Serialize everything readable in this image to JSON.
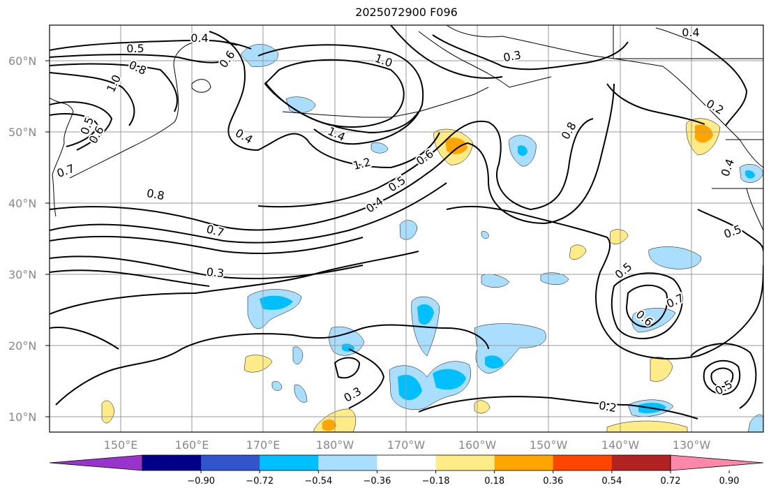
{
  "title": "2025072900 F096",
  "lat_labels": [
    "60°N",
    "50°N",
    "40°N",
    "30°N",
    "20°N",
    "10°N"
  ],
  "lon_labels": [
    "150°E",
    "160°E",
    "170°E",
    "180°W",
    "170°W",
    "160°W",
    "150°W",
    "140°W",
    "130°W"
  ],
  "colorbar": {
    "ticks": [
      "−0.90",
      "−0.72",
      "−0.54",
      "−0.36",
      "−0.18",
      "0.18",
      "0.36",
      "0.54",
      "0.72",
      "0.90"
    ],
    "colors": [
      "#9933cc",
      "#000088",
      "#3355cc",
      "#00bfff",
      "#aadeff",
      "#ffffff",
      "#ffeb88",
      "#ffa500",
      "#ff4500",
      "#b22222",
      "#ff88aa"
    ]
  },
  "contour_labels": [
    "0.4",
    "0.5",
    "0.8",
    "1.0",
    "0.5",
    "0.6",
    "0.7",
    "0.6",
    "0.4",
    "1.0",
    "1.4",
    "1.2",
    "0.6",
    "0.5",
    "0.4",
    "0.8",
    "0.7",
    "0.3",
    "0.3",
    "0.8",
    "0.2",
    "0.4",
    "0.4",
    "0.5",
    "0.5",
    "0.6",
    "0.7",
    "0.5",
    "0.2",
    "0.3"
  ]
}
